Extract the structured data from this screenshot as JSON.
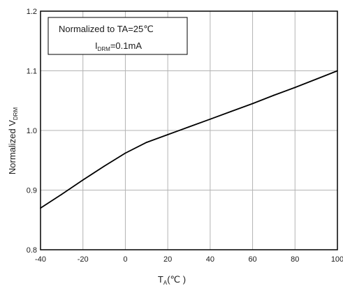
{
  "chart_data": {
    "type": "line",
    "xlabel": {
      "main": "T",
      "sub": "A",
      "unit": "(℃ )"
    },
    "ylabel": {
      "prefix": "Normalized  V",
      "sub": "DRM"
    },
    "xlim": [
      -40,
      100
    ],
    "ylim": [
      0.8,
      1.2
    ],
    "x_ticks": [
      -40,
      -20,
      0,
      20,
      40,
      60,
      80,
      100
    ],
    "x_tick_labels": [
      "-40",
      "-20",
      "0",
      "20",
      "40",
      "60",
      "80",
      "100"
    ],
    "y_ticks": [
      0.8,
      0.9,
      1.0,
      1.1,
      1.2
    ],
    "y_tick_labels": [
      "0.8",
      "0.9",
      "1.0",
      "1.1",
      "1.2"
    ],
    "grid": true,
    "annotation": {
      "line1": "Normalized to TA=25℃",
      "line2_main": "I",
      "line2_sub": "DRM",
      "line2_rest": "=0.1mA"
    },
    "series": [
      {
        "color": "#000000",
        "x": [
          -40,
          -30,
          -20,
          -10,
          0,
          10,
          20,
          30,
          40,
          50,
          60,
          70,
          80,
          90,
          100
        ],
        "values": [
          0.87,
          0.893,
          0.917,
          0.94,
          0.962,
          0.98,
          0.993,
          1.006,
          1.019,
          1.032,
          1.045,
          1.059,
          1.072,
          1.086,
          1.1
        ]
      }
    ]
  }
}
